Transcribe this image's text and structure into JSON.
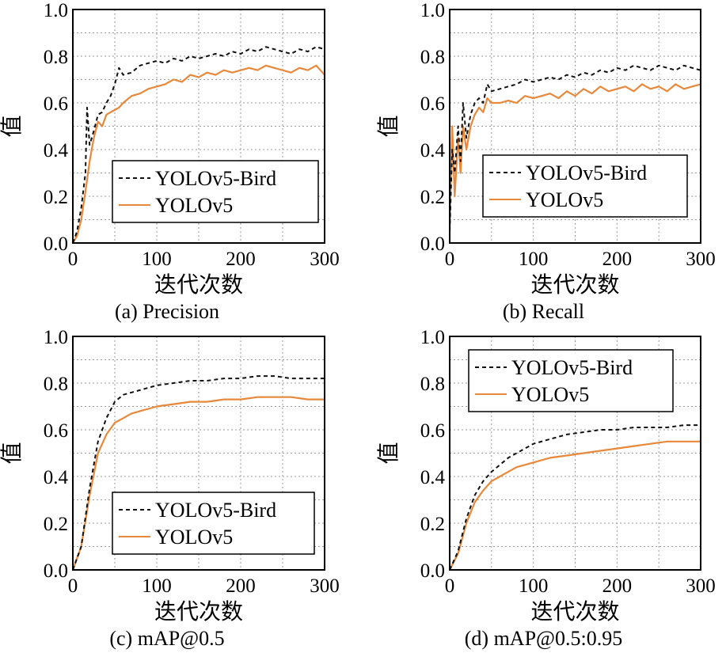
{
  "colors": {
    "bird": "#111111",
    "base": "#E8883A",
    "grid": "#9a9a9a"
  },
  "chart_data": [
    {
      "type": "line",
      "caption": "(a) Precision",
      "xlabel": "迭代次数",
      "ylabel": "值",
      "xlim": [
        0,
        300
      ],
      "ylim": [
        0,
        1.0
      ],
      "xticks": [
        "0",
        "100",
        "200",
        "300"
      ],
      "yticks": [
        "0.0",
        "0.2",
        "0.4",
        "0.6",
        "0.8",
        "1.0"
      ],
      "legend_pos": "bottom-right",
      "grid": true,
      "series": [
        {
          "name": "YOLOv5-Bird",
          "style": "dashed",
          "x": [
            0,
            5,
            10,
            15,
            17,
            20,
            25,
            30,
            35,
            40,
            45,
            50,
            55,
            60,
            70,
            80,
            90,
            100,
            110,
            120,
            130,
            140,
            150,
            160,
            170,
            180,
            190,
            200,
            210,
            220,
            230,
            240,
            250,
            260,
            270,
            280,
            290,
            300
          ],
          "y": [
            0.0,
            0.05,
            0.15,
            0.3,
            0.58,
            0.42,
            0.48,
            0.55,
            0.56,
            0.6,
            0.63,
            0.68,
            0.75,
            0.72,
            0.73,
            0.76,
            0.77,
            0.78,
            0.77,
            0.79,
            0.78,
            0.8,
            0.79,
            0.8,
            0.81,
            0.8,
            0.82,
            0.81,
            0.83,
            0.82,
            0.84,
            0.83,
            0.82,
            0.81,
            0.83,
            0.82,
            0.84,
            0.83
          ]
        },
        {
          "name": "YOLOv5",
          "style": "solid",
          "x": [
            0,
            5,
            10,
            15,
            20,
            25,
            30,
            35,
            40,
            45,
            50,
            55,
            60,
            70,
            80,
            90,
            100,
            110,
            120,
            130,
            140,
            150,
            160,
            170,
            180,
            190,
            200,
            210,
            220,
            230,
            240,
            250,
            260,
            270,
            280,
            290,
            300
          ],
          "y": [
            0.0,
            0.03,
            0.1,
            0.22,
            0.35,
            0.45,
            0.52,
            0.5,
            0.55,
            0.56,
            0.57,
            0.58,
            0.6,
            0.63,
            0.64,
            0.66,
            0.67,
            0.68,
            0.7,
            0.69,
            0.72,
            0.71,
            0.73,
            0.72,
            0.74,
            0.73,
            0.74,
            0.75,
            0.74,
            0.76,
            0.75,
            0.74,
            0.73,
            0.75,
            0.74,
            0.76,
            0.72
          ]
        }
      ]
    },
    {
      "type": "line",
      "caption": "(b) Recall",
      "xlabel": "迭代次数",
      "ylabel": "值",
      "xlim": [
        0,
        300
      ],
      "ylim": [
        0,
        1.0
      ],
      "xticks": [
        "0",
        "100",
        "200",
        "300"
      ],
      "yticks": [
        "0.0",
        "0.2",
        "0.4",
        "0.6",
        "0.8",
        "1.0"
      ],
      "legend_pos": "bottom-right",
      "grid": true,
      "series": [
        {
          "name": "YOLOv5-Bird",
          "style": "dashed",
          "x": [
            0,
            3,
            6,
            10,
            13,
            16,
            20,
            25,
            30,
            35,
            40,
            45,
            50,
            60,
            70,
            80,
            90,
            100,
            110,
            120,
            130,
            140,
            150,
            160,
            170,
            180,
            190,
            200,
            210,
            220,
            230,
            240,
            250,
            260,
            270,
            280,
            290,
            300
          ],
          "y": [
            0.05,
            0.4,
            0.3,
            0.5,
            0.35,
            0.6,
            0.45,
            0.55,
            0.6,
            0.62,
            0.6,
            0.68,
            0.65,
            0.66,
            0.67,
            0.68,
            0.7,
            0.69,
            0.7,
            0.71,
            0.7,
            0.72,
            0.71,
            0.73,
            0.72,
            0.74,
            0.73,
            0.75,
            0.74,
            0.76,
            0.75,
            0.74,
            0.76,
            0.75,
            0.74,
            0.76,
            0.75,
            0.74
          ]
        },
        {
          "name": "YOLOv5",
          "style": "solid",
          "x": [
            0,
            3,
            6,
            10,
            13,
            16,
            20,
            25,
            30,
            35,
            40,
            45,
            50,
            60,
            70,
            80,
            90,
            100,
            110,
            120,
            130,
            140,
            150,
            160,
            170,
            180,
            190,
            200,
            210,
            220,
            230,
            240,
            250,
            260,
            270,
            280,
            290,
            300
          ],
          "y": [
            0.05,
            0.5,
            0.2,
            0.45,
            0.3,
            0.5,
            0.4,
            0.5,
            0.55,
            0.58,
            0.56,
            0.62,
            0.6,
            0.6,
            0.61,
            0.6,
            0.63,
            0.62,
            0.63,
            0.64,
            0.62,
            0.65,
            0.63,
            0.66,
            0.64,
            0.67,
            0.65,
            0.66,
            0.67,
            0.65,
            0.68,
            0.66,
            0.67,
            0.65,
            0.68,
            0.66,
            0.67,
            0.68
          ]
        }
      ]
    },
    {
      "type": "line",
      "caption": "(c) mAP@0.5",
      "xlabel": "迭代次数",
      "ylabel": "值",
      "xlim": [
        0,
        300
      ],
      "ylim": [
        0,
        1.0
      ],
      "xticks": [
        "0",
        "100",
        "200",
        "300"
      ],
      "yticks": [
        "0.0",
        "0.2",
        "0.4",
        "0.6",
        "0.8",
        "1.0"
      ],
      "legend_pos": "bottom-right",
      "grid": true,
      "series": [
        {
          "name": "YOLOv5-Bird",
          "style": "dashed",
          "x": [
            0,
            10,
            20,
            30,
            40,
            50,
            60,
            70,
            80,
            90,
            100,
            120,
            140,
            160,
            180,
            200,
            220,
            240,
            260,
            280,
            300
          ],
          "y": [
            0.0,
            0.1,
            0.35,
            0.55,
            0.65,
            0.72,
            0.75,
            0.76,
            0.77,
            0.78,
            0.79,
            0.8,
            0.81,
            0.81,
            0.82,
            0.82,
            0.83,
            0.83,
            0.82,
            0.82,
            0.82
          ]
        },
        {
          "name": "YOLOv5",
          "style": "solid",
          "x": [
            0,
            10,
            20,
            30,
            40,
            50,
            60,
            70,
            80,
            90,
            100,
            120,
            140,
            160,
            180,
            200,
            220,
            240,
            260,
            280,
            300
          ],
          "y": [
            0.0,
            0.1,
            0.32,
            0.5,
            0.58,
            0.63,
            0.65,
            0.67,
            0.68,
            0.69,
            0.7,
            0.71,
            0.72,
            0.72,
            0.73,
            0.73,
            0.74,
            0.74,
            0.74,
            0.73,
            0.73
          ]
        }
      ]
    },
    {
      "type": "line",
      "caption": "(d) mAP@0.5:0.95",
      "xlabel": "迭代次数",
      "ylabel": "值",
      "xlim": [
        0,
        300
      ],
      "ylim": [
        0,
        1.0
      ],
      "xticks": [
        "0",
        "100",
        "200",
        "300"
      ],
      "yticks": [
        "0.0",
        "0.2",
        "0.4",
        "0.6",
        "0.8",
        "1.0"
      ],
      "legend_pos": "top-right",
      "grid": true,
      "series": [
        {
          "name": "YOLOv5-Bird",
          "style": "dashed",
          "x": [
            0,
            10,
            20,
            30,
            40,
            50,
            60,
            70,
            80,
            90,
            100,
            120,
            140,
            160,
            180,
            200,
            220,
            240,
            260,
            280,
            300
          ],
          "y": [
            0.0,
            0.08,
            0.22,
            0.32,
            0.38,
            0.42,
            0.45,
            0.48,
            0.5,
            0.52,
            0.54,
            0.56,
            0.58,
            0.59,
            0.6,
            0.6,
            0.61,
            0.61,
            0.61,
            0.62,
            0.62
          ]
        },
        {
          "name": "YOLOv5",
          "style": "solid",
          "x": [
            0,
            10,
            20,
            30,
            40,
            50,
            60,
            70,
            80,
            90,
            100,
            120,
            140,
            160,
            180,
            200,
            220,
            240,
            260,
            280,
            300
          ],
          "y": [
            0.0,
            0.07,
            0.2,
            0.29,
            0.34,
            0.38,
            0.4,
            0.42,
            0.44,
            0.45,
            0.46,
            0.48,
            0.49,
            0.5,
            0.51,
            0.52,
            0.53,
            0.54,
            0.55,
            0.55,
            0.55
          ]
        }
      ]
    }
  ]
}
